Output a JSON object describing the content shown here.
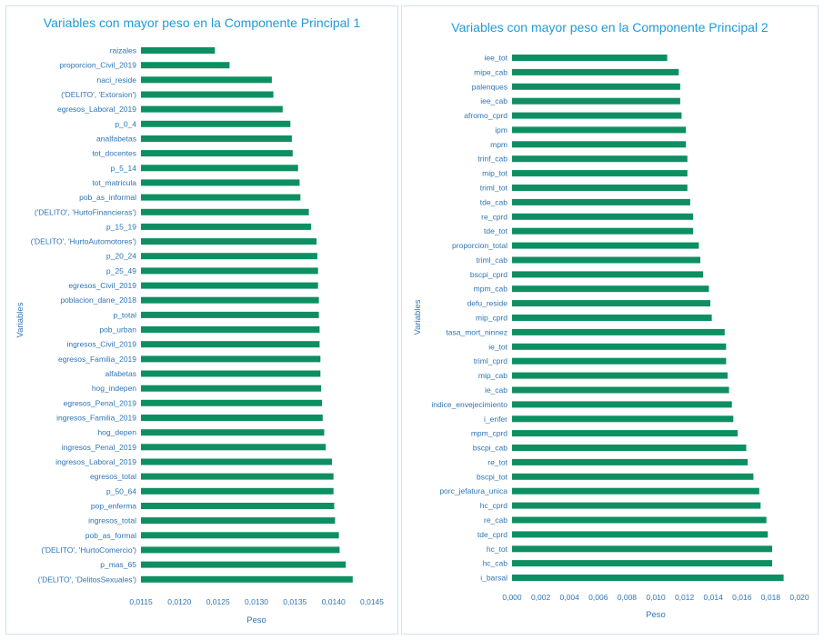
{
  "chart_data": [
    {
      "type": "bar",
      "orientation": "horizontal",
      "title": "Variables con mayor peso en la Componente Principal 1",
      "xlabel": "Peso",
      "ylabel": "Variables",
      "xlim": [
        0.0115,
        0.0145
      ],
      "xticks": [
        0.0115,
        0.012,
        0.0125,
        0.013,
        0.0135,
        0.014,
        0.0145
      ],
      "xtick_labels": [
        "0,0115",
        "0,0120",
        "0,0125",
        "0,0130",
        "0,0135",
        "0,0140",
        "0,0145"
      ],
      "bar_color": "#0e8f62",
      "categories": [
        "raizales",
        "proporcion_Civil_2019",
        "naci_reside",
        "('DELITO', 'Extorsion')",
        "egresos_Laboral_2019",
        "p_0_4",
        "analfabetas",
        "tot_docentes",
        "p_5_14",
        "tot_matricula",
        "pob_as_informal",
        "('DELITO', 'HurtoFinancieras')",
        "p_15_19",
        "('DELITO', 'HurtoAutomotores')",
        "p_20_24",
        "p_25_49",
        "egresos_Civil_2019",
        "poblacion_dane_2018",
        "p_total",
        "pob_urban",
        "ingresos_Civil_2019",
        "egresos_Familia_2019",
        "alfabetas",
        "hog_indepen",
        "egresos_Penal_2019",
        "ingresos_Familia_2019",
        "hog_depen",
        "ingresos_Penal_2019",
        "ingresos_Laboral_2019",
        "egresos_total",
        "p_50_64",
        "pop_enferma",
        "ingresos_total",
        "pob_as_formal",
        "('DELITO', 'HurtoComercio')",
        "p_mas_65",
        "('DELITO', 'DelitosSexuales')"
      ],
      "values": [
        0.01246,
        0.01265,
        0.0132,
        0.01322,
        0.01334,
        0.01344,
        0.01346,
        0.01347,
        0.01354,
        0.01356,
        0.01357,
        0.01368,
        0.01371,
        0.01378,
        0.01379,
        0.0138,
        0.0138,
        0.01381,
        0.01381,
        0.01382,
        0.01382,
        0.01383,
        0.01383,
        0.01384,
        0.01385,
        0.01386,
        0.01388,
        0.0139,
        0.01398,
        0.014,
        0.014,
        0.01401,
        0.01402,
        0.01407,
        0.01408,
        0.01416,
        0.01425
      ]
    },
    {
      "type": "bar",
      "orientation": "horizontal",
      "title": "Variables con mayor peso en la Componente Principal 2",
      "xlabel": "Peso",
      "ylabel": "Variables",
      "xlim": [
        0,
        0.02
      ],
      "xticks": [
        0,
        0.002,
        0.004,
        0.006,
        0.008,
        0.01,
        0.012,
        0.014,
        0.016,
        0.018,
        0.02
      ],
      "xtick_labels": [
        "0,000",
        "0,002",
        "0,004",
        "0,006",
        "0,008",
        "0,010",
        "0,012",
        "0,014",
        "0,016",
        "0,018",
        "0,020"
      ],
      "bar_color": "#0e8f62",
      "categories": [
        "iee_tot",
        "mipe_cab",
        "palenques",
        "iee_cab",
        "afromo_cprd",
        "ipm",
        "mpm",
        "trinf_cab",
        "mip_tot",
        "triml_tot",
        "tde_cab",
        "re_cprd",
        "tde_tot",
        "proporcion_total",
        "triml_cab",
        "bscpi_cprd",
        "mpm_cab",
        "defu_reside",
        "mip_cprd",
        "tasa_mort_ninnez",
        "ie_tot",
        "triml_cprd",
        "mip_cab",
        "ie_cab",
        "indice_envejecimiento",
        "i_enfer",
        "mpm_cprd",
        "bscpi_cab",
        "re_tot",
        "bscpi_tot",
        "porc_jefatura_unica",
        "hc_cprd",
        "re_cab",
        "tde_cprd",
        "hc_tot",
        "hc_cab",
        "i_barsal"
      ],
      "values": [
        0.0108,
        0.0116,
        0.0117,
        0.0117,
        0.0118,
        0.0121,
        0.0121,
        0.0122,
        0.0122,
        0.0122,
        0.0124,
        0.0126,
        0.0126,
        0.013,
        0.0131,
        0.0133,
        0.0137,
        0.0138,
        0.0139,
        0.0148,
        0.0149,
        0.0149,
        0.015,
        0.0151,
        0.0153,
        0.0154,
        0.0157,
        0.0163,
        0.0164,
        0.0168,
        0.0172,
        0.0173,
        0.0177,
        0.0178,
        0.0181,
        0.0181,
        0.0189
      ]
    }
  ]
}
